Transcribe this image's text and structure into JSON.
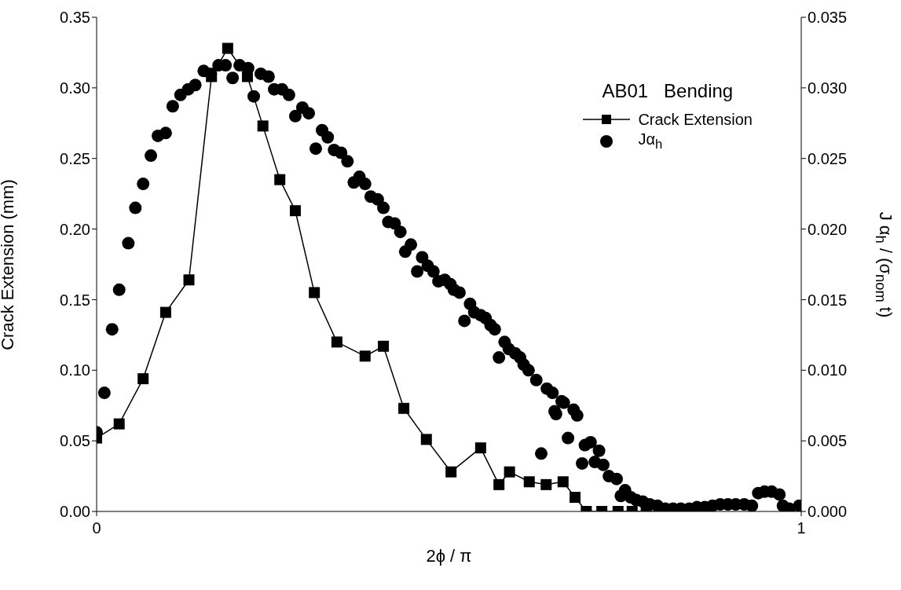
{
  "chart_data": {
    "type": "line",
    "legend_title": "AB01   Bending",
    "xlabel": "2ϕ / π",
    "ylabel": "Crack Extension (mm)",
    "y2label": "J α$_{h}$ / (σ$_{nom}$ t)",
    "xlim": [
      0,
      1
    ],
    "xticks": [
      0,
      1
    ],
    "ylim": [
      0,
      0.35
    ],
    "yticks": [
      {
        "value": 0,
        "label": "0.00"
      },
      {
        "value": 0.05,
        "label": "0.05"
      },
      {
        "value": 0.1,
        "label": "0.10"
      },
      {
        "value": 0.15,
        "label": "0.15"
      },
      {
        "value": 0.2,
        "label": "0.20"
      },
      {
        "value": 0.25,
        "label": "0.25"
      },
      {
        "value": 0.3,
        "label": "0.30"
      },
      {
        "value": 0.35,
        "label": "0.35"
      }
    ],
    "y2lim": [
      0,
      0.035
    ],
    "y2ticks": [
      {
        "value": 0,
        "label": "0.000"
      },
      {
        "value": 0.005,
        "label": "0.005"
      },
      {
        "value": 0.01,
        "label": "0.010"
      },
      {
        "value": 0.015,
        "label": "0.015"
      },
      {
        "value": 0.02,
        "label": "0.020"
      },
      {
        "value": 0.025,
        "label": "0.025"
      },
      {
        "value": 0.03,
        "label": "0.030"
      },
      {
        "value": 0.035,
        "label": "0.035"
      }
    ],
    "grid": false,
    "legend": "top right",
    "series": [
      {
        "name": "Crack Extension",
        "color": "#000000",
        "marker": "square",
        "line_style": "solid",
        "x": [
          0,
          0.032,
          0.066,
          0.098,
          0.131,
          0.163,
          0.186,
          0.214,
          0.236,
          0.26,
          0.282,
          0.309,
          0.341,
          0.381,
          0.407,
          0.436,
          0.468,
          0.503,
          0.545,
          0.571,
          0.586,
          0.614,
          0.638,
          0.662,
          0.679,
          0.695,
          0.717,
          0.74,
          0.76,
          0.78,
          0.8,
          0.82,
          0.84
        ],
        "values": [
          0.052,
          0.062,
          0.094,
          0.141,
          0.164,
          0.308,
          0.328,
          0.308,
          0.273,
          0.235,
          0.213,
          0.155,
          0.12,
          0.11,
          0.117,
          0.073,
          0.051,
          0.028,
          0.045,
          0.019,
          0.028,
          0.021,
          0.019,
          0.021,
          0.01,
          0,
          0,
          0,
          0,
          0,
          0,
          0,
          0
        ]
      },
      {
        "name": "Jα$_{h}$",
        "type": "scatter",
        "axis": "y2",
        "color": "#000000",
        "marker": "circle",
        "x": [
          0,
          0.011,
          0.022,
          0.032,
          0.045,
          0.055,
          0.066,
          0.077,
          0.087,
          0.098,
          0.108,
          0.119,
          0.13,
          0.14,
          0.152,
          0.162,
          0.173,
          0.183,
          0.193,
          0.203,
          0.215,
          0.223,
          0.233,
          0.244,
          0.252,
          0.263,
          0.273,
          0.282,
          0.292,
          0.301,
          0.311,
          0.32,
          0.328,
          0.337,
          0.347,
          0.356,
          0.365,
          0.373,
          0.381,
          0.389,
          0.399,
          0.407,
          0.414,
          0.423,
          0.431,
          0.438,
          0.446,
          0.455,
          0.462,
          0.47,
          0.478,
          0.485,
          0.494,
          0.502,
          0.507,
          0.515,
          0.522,
          0.53,
          0.536,
          0.545,
          0.552,
          0.559,
          0.565,
          0.571,
          0.579,
          0.585,
          0.594,
          0.601,
          0.606,
          0.613,
          0.624,
          0.631,
          0.639,
          0.647,
          0.65,
          0.652,
          0.66,
          0.663,
          0.669,
          0.677,
          0.682,
          0.689,
          0.693,
          0.701,
          0.707,
          0.713,
          0.719,
          0.727,
          0.738,
          0.744,
          0.75,
          0.758,
          0.766,
          0.775,
          0.785,
          0.796,
          0.807,
          0.818,
          0.829,
          0.841,
          0.852,
          0.863,
          0.874,
          0.885,
          0.896,
          0.907,
          0.919,
          0.93,
          0.939,
          0.948,
          0.958,
          0.969,
          0.974,
          0.983,
          0.997
        ],
        "values": [
          0.0056,
          0.0084,
          0.0129,
          0.0157,
          0.019,
          0.0215,
          0.0232,
          0.0252,
          0.0266,
          0.0268,
          0.0287,
          0.0295,
          0.0299,
          0.0302,
          0.0312,
          0.031,
          0.0316,
          0.0316,
          0.0307,
          0.0316,
          0.0314,
          0.0294,
          0.031,
          0.0308,
          0.0299,
          0.0299,
          0.0295,
          0.028,
          0.0286,
          0.0282,
          0.0257,
          0.027,
          0.0265,
          0.0256,
          0.0254,
          0.0248,
          0.0233,
          0.0237,
          0.0232,
          0.0223,
          0.0221,
          0.0215,
          0.0205,
          0.0204,
          0.0198,
          0.0184,
          0.0189,
          0.017,
          0.018,
          0.0174,
          0.017,
          0.0163,
          0.0164,
          0.0161,
          0.0157,
          0.0155,
          0.0135,
          0.0147,
          0.0141,
          0.0139,
          0.0137,
          0.0132,
          0.0129,
          0.0109,
          0.012,
          0.0115,
          0.0112,
          0.0109,
          0.0104,
          0.01,
          0.0093,
          0.0041,
          0.0087,
          0.0084,
          0.0071,
          0.0069,
          0.0078,
          0.0077,
          0.0052,
          0.0072,
          0.0068,
          0.0034,
          0.0047,
          0.0049,
          0.0035,
          0.0043,
          0.0033,
          0.0025,
          0.0023,
          0.0011,
          0.0015,
          0.001,
          0.0008,
          0.0007,
          0.0005,
          0.0004,
          0.0002,
          0.0002,
          0.0002,
          0.0002,
          0.0003,
          0.0003,
          0.0004,
          0.0005,
          0.0005,
          0.0005,
          0.0005,
          0.0004,
          0.0013,
          0.0014,
          0.0014,
          0.0012,
          0.0004,
          0.0002,
          0.0004
        ]
      }
    ]
  }
}
